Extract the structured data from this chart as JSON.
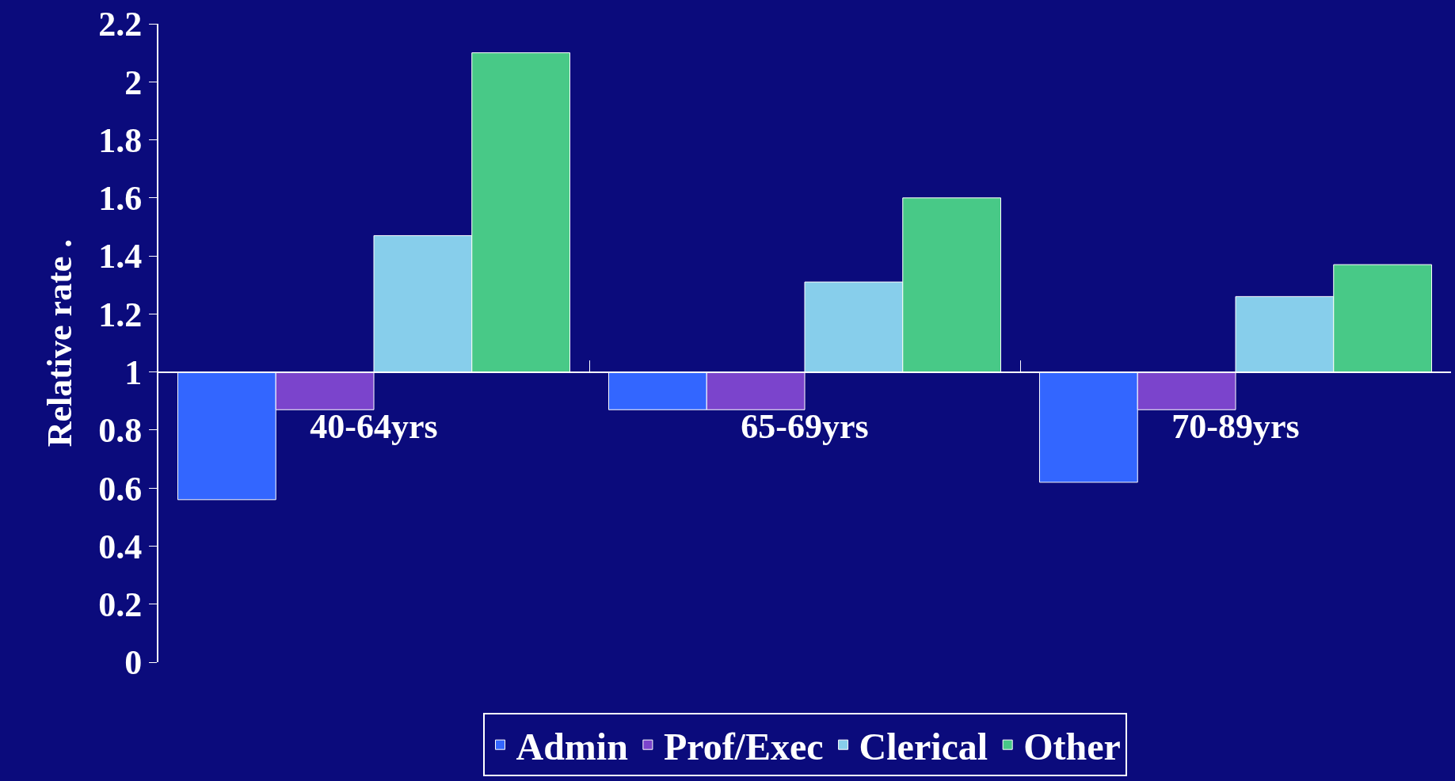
{
  "chart_data": {
    "type": "bar",
    "ylabel": "Relative rate .",
    "categories": [
      "40-64yrs",
      "65-69yrs",
      "70-89yrs"
    ],
    "series": [
      {
        "name": "Admin",
        "color": "#3366ff",
        "base": [
          1,
          1,
          1
        ],
        "values": [
          -0.44,
          -0.13,
          -0.38
        ]
      },
      {
        "name": "Prof/Exec",
        "color": "#7b44cc",
        "base": [
          1,
          1,
          1
        ],
        "values": [
          -0.13,
          -0.13,
          -0.13
        ]
      },
      {
        "name": "Clerical",
        "color": "#87ceeb",
        "base": [
          1,
          1,
          1
        ],
        "values": [
          0.47,
          0.31,
          0.26
        ]
      },
      {
        "name": "Other",
        "color": "#48c987",
        "base": [
          1,
          1,
          1
        ],
        "values": [
          1.1,
          0.6,
          0.37
        ]
      }
    ],
    "ylim": [
      0,
      2.2
    ],
    "yticks": [
      0,
      0.2,
      0.4,
      0.6,
      0.8,
      1,
      1.2,
      1.4,
      1.6,
      1.8,
      2,
      2.2
    ],
    "legend": "bottom"
  }
}
